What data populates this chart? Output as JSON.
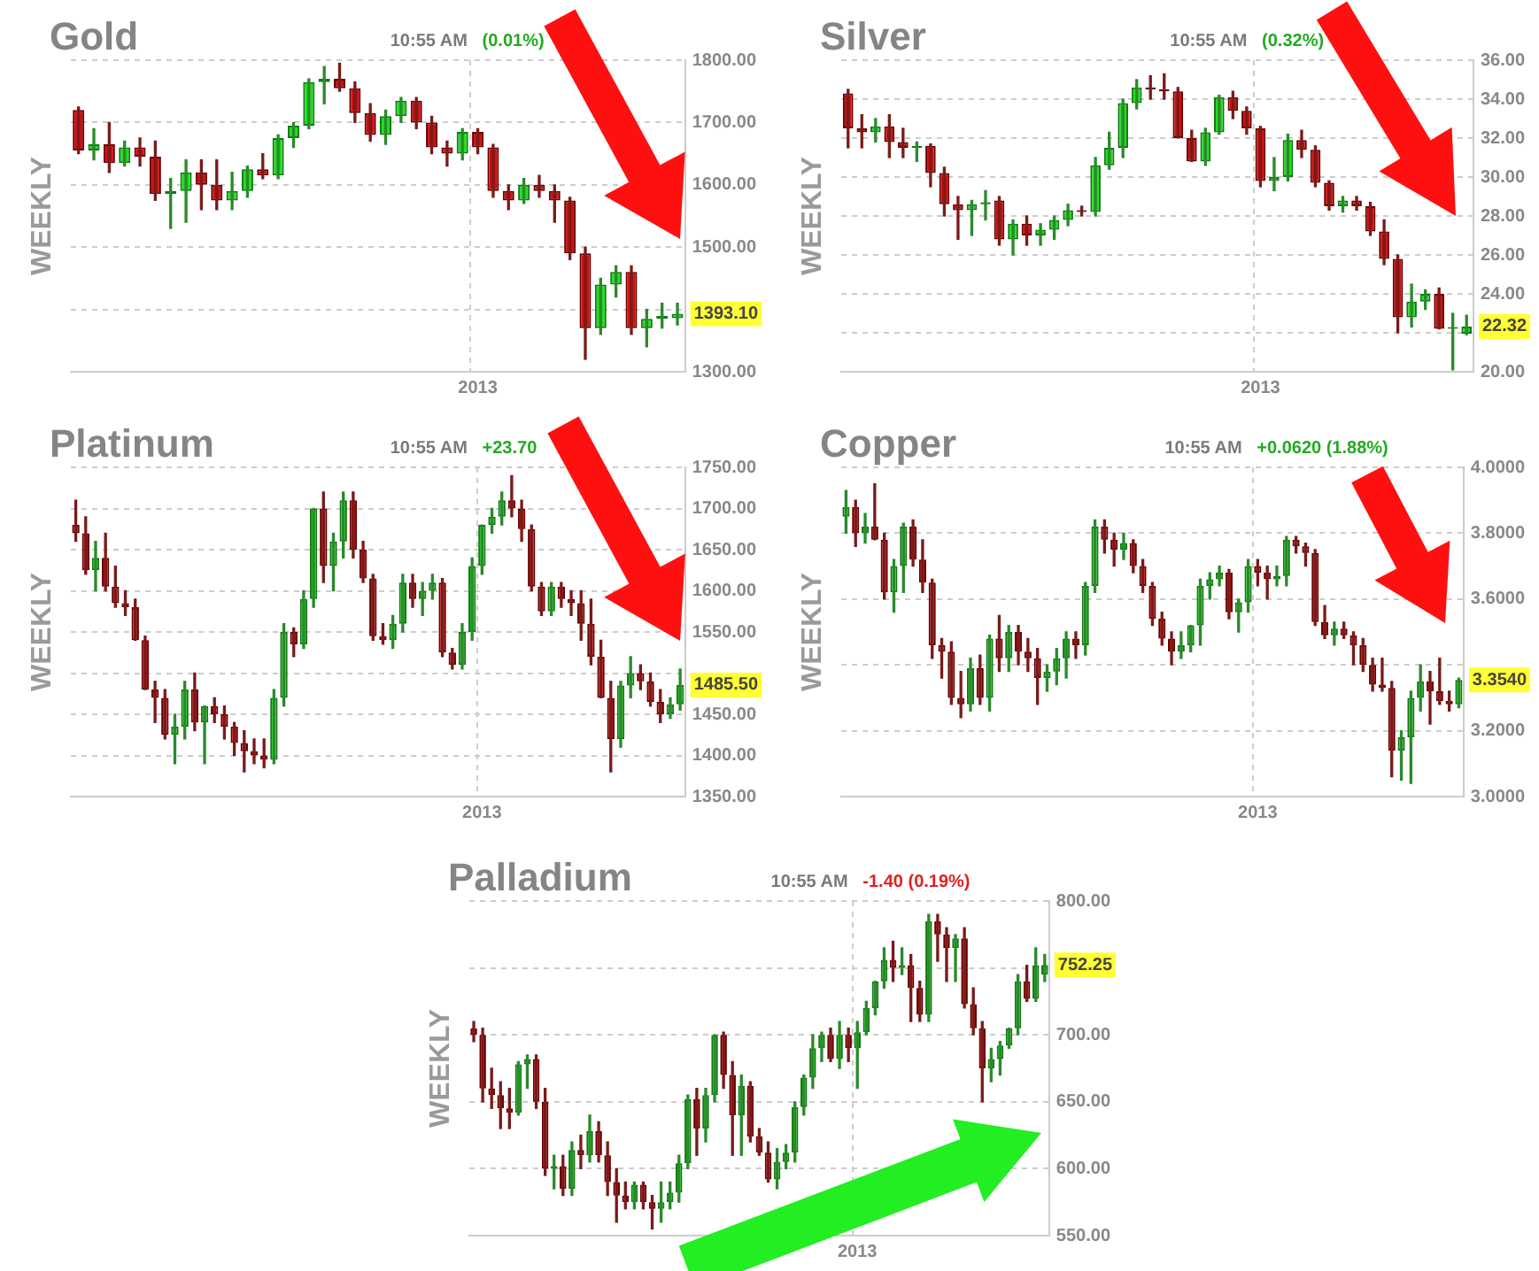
{
  "chart_data": [
    {
      "type": "candlestick",
      "title": "Gold",
      "ylabel": "WEEKLY",
      "grid": true,
      "categories": [
        null,
        null,
        null,
        null,
        null,
        null,
        null,
        null,
        null,
        null,
        null,
        null,
        null,
        null,
        null,
        null,
        null,
        null,
        null,
        null,
        null,
        null,
        null,
        null,
        null,
        null,
        "2013",
        null,
        null,
        null,
        null,
        null,
        null,
        null,
        null,
        null,
        null,
        null,
        null,
        null
      ],
      "ohlc": [
        [
          1720,
          1725,
          1650,
          1655
        ],
        [
          1655,
          1690,
          1640,
          1665
        ],
        [
          1665,
          1700,
          1620,
          1635
        ],
        [
          1635,
          1670,
          1630,
          1660
        ],
        [
          1660,
          1675,
          1630,
          1645
        ],
        [
          1645,
          1670,
          1575,
          1585
        ],
        [
          1585,
          1610,
          1530,
          1590
        ],
        [
          1590,
          1640,
          1540,
          1620
        ],
        [
          1620,
          1640,
          1560,
          1600
        ],
        [
          1600,
          1640,
          1560,
          1575
        ],
        [
          1575,
          1620,
          1560,
          1590
        ],
        [
          1590,
          1630,
          1580,
          1625
        ],
        [
          1625,
          1650,
          1610,
          1615
        ],
        [
          1615,
          1680,
          1610,
          1675
        ],
        [
          1675,
          1700,
          1660,
          1695
        ],
        [
          1695,
          1770,
          1690,
          1765
        ],
        [
          1765,
          1790,
          1730,
          1770
        ],
        [
          1770,
          1795,
          1750,
          1755
        ],
        [
          1755,
          1765,
          1700,
          1715
        ],
        [
          1715,
          1730,
          1670,
          1680
        ],
        [
          1680,
          1720,
          1665,
          1710
        ],
        [
          1710,
          1740,
          1700,
          1735
        ],
        [
          1735,
          1740,
          1690,
          1700
        ],
        [
          1700,
          1710,
          1650,
          1660
        ],
        [
          1660,
          1670,
          1630,
          1650
        ],
        [
          1650,
          1690,
          1640,
          1685
        ],
        [
          1685,
          1690,
          1650,
          1660
        ],
        [
          1660,
          1665,
          1580,
          1590
        ],
        [
          1590,
          1600,
          1560,
          1575
        ],
        [
          1575,
          1610,
          1570,
          1600
        ],
        [
          1600,
          1615,
          1580,
          1590
        ],
        [
          1590,
          1600,
          1540,
          1575
        ],
        [
          1575,
          1580,
          1480,
          1490
        ],
        [
          1490,
          1500,
          1320,
          1370
        ],
        [
          1370,
          1450,
          1360,
          1440
        ],
        [
          1440,
          1470,
          1420,
          1460
        ],
        [
          1460,
          1470,
          1360,
          1370
        ],
        [
          1370,
          1400,
          1340,
          1385
        ],
        [
          1385,
          1410,
          1370,
          1390
        ],
        [
          1386,
          1410,
          1375,
          1393.1
        ]
      ],
      "ylim": [
        1300,
        1800
      ],
      "yticks": [
        {
          "value": 1300,
          "label": "1300.00"
        },
        {
          "value": 1400,
          "label": null
        },
        {
          "value": 1500,
          "label": "1500.00"
        },
        {
          "value": 1600,
          "label": "1600.00"
        },
        {
          "value": 1700,
          "label": "1700.00"
        },
        {
          "value": 1800,
          "label": "1800.00"
        }
      ],
      "annotations": [
        "10:55 AM",
        "(0.01%)",
        "1393.10"
      ]
    },
    {
      "type": "candlestick",
      "title": "Silver",
      "ylabel": "WEEKLY",
      "grid": true,
      "categories": [
        null,
        null,
        null,
        null,
        null,
        null,
        null,
        null,
        null,
        null,
        null,
        null,
        null,
        null,
        null,
        null,
        null,
        null,
        null,
        null,
        null,
        null,
        null,
        null,
        null,
        null,
        null,
        null,
        null,
        null,
        "2013",
        null,
        null,
        null,
        null,
        null,
        null,
        null,
        null,
        null,
        null,
        null,
        null,
        null,
        null,
        null
      ],
      "ohlc": [
        [
          34.3,
          34.5,
          31.5,
          32.5
        ],
        [
          32.5,
          33.2,
          31.5,
          32.3
        ],
        [
          32.3,
          33.0,
          31.8,
          32.6
        ],
        [
          32.6,
          33.2,
          31.0,
          31.8
        ],
        [
          31.8,
          32.5,
          31.0,
          31.5
        ],
        [
          31.5,
          31.8,
          30.8,
          31.6
        ],
        [
          31.6,
          31.7,
          29.5,
          30.2
        ],
        [
          30.2,
          30.5,
          28.0,
          28.6
        ],
        [
          28.6,
          29.0,
          26.8,
          28.3
        ],
        [
          28.3,
          28.8,
          27.0,
          28.6
        ],
        [
          28.6,
          29.3,
          27.8,
          28.7
        ],
        [
          28.8,
          29.0,
          26.5,
          26.8
        ],
        [
          26.8,
          27.8,
          26.0,
          27.6
        ],
        [
          27.6,
          28.0,
          26.5,
          27.0
        ],
        [
          27.0,
          27.6,
          26.5,
          27.3
        ],
        [
          27.3,
          28.0,
          26.8,
          27.8
        ],
        [
          27.8,
          28.6,
          27.5,
          28.3
        ],
        [
          28.3,
          28.5,
          28.0,
          28.2
        ],
        [
          28.2,
          31.0,
          28.0,
          30.6
        ],
        [
          30.6,
          32.3,
          30.4,
          31.5
        ],
        [
          31.5,
          34.0,
          31.0,
          33.8
        ],
        [
          33.8,
          35.0,
          33.5,
          34.6
        ],
        [
          34.6,
          35.2,
          34.0,
          34.5
        ],
        [
          34.5,
          35.3,
          34.0,
          34.4
        ],
        [
          34.4,
          34.6,
          32.0,
          32.0
        ],
        [
          32.0,
          32.4,
          30.8,
          30.8
        ],
        [
          30.8,
          32.5,
          30.6,
          32.3
        ],
        [
          32.3,
          34.2,
          32.2,
          34.1
        ],
        [
          34.1,
          34.4,
          33.0,
          33.4
        ],
        [
          33.4,
          33.6,
          32.2,
          32.5
        ],
        [
          32.5,
          32.6,
          29.5,
          29.8
        ],
        [
          29.8,
          31.0,
          29.3,
          30.0
        ],
        [
          30.0,
          32.2,
          29.8,
          31.9
        ],
        [
          31.9,
          32.4,
          31.0,
          31.4
        ],
        [
          31.4,
          31.6,
          29.5,
          29.7
        ],
        [
          29.7,
          29.8,
          28.3,
          28.5
        ],
        [
          28.5,
          29.0,
          28.2,
          28.8
        ],
        [
          28.8,
          29.0,
          28.3,
          28.5
        ],
        [
          28.5,
          28.7,
          27.0,
          27.2
        ],
        [
          27.2,
          27.8,
          25.5,
          25.8
        ],
        [
          25.8,
          26.0,
          22.0,
          22.8
        ],
        [
          22.8,
          24.5,
          22.3,
          23.6
        ],
        [
          23.6,
          24.2,
          23.2,
          24.0
        ],
        [
          24.0,
          24.3,
          22.2,
          22.2
        ],
        [
          22.2,
          23.0,
          20.1,
          22.3
        ],
        [
          21.95,
          22.9,
          21.9,
          22.32
        ]
      ],
      "ylim": [
        20,
        36
      ],
      "yticks": [
        {
          "value": 20,
          "label": "20.00"
        },
        {
          "value": 22,
          "label": null
        },
        {
          "value": 24,
          "label": "24.00"
        },
        {
          "value": 26,
          "label": "26.00"
        },
        {
          "value": 28,
          "label": "28.00"
        },
        {
          "value": 30,
          "label": "30.00"
        },
        {
          "value": 32,
          "label": "32.00"
        },
        {
          "value": 34,
          "label": "34.00"
        },
        {
          "value": 36,
          "label": "36.00"
        }
      ],
      "annotations": [
        "10:55 AM",
        "(0.32%)",
        "22.32"
      ]
    },
    {
      "type": "candlestick",
      "title": "Platinum",
      "ylabel": "WEEKLY",
      "grid": true,
      "categories": [
        null,
        null,
        null,
        null,
        null,
        null,
        null,
        null,
        null,
        null,
        null,
        null,
        null,
        null,
        null,
        null,
        null,
        null,
        null,
        null,
        null,
        null,
        null,
        null,
        null,
        null,
        null,
        null,
        null,
        null,
        null,
        null,
        null,
        null,
        null,
        null,
        null,
        null,
        null,
        null,
        null,
        "2013",
        null,
        null,
        null,
        null,
        null,
        null,
        null,
        null,
        null,
        null,
        null,
        null,
        null,
        null,
        null,
        null,
        null,
        null,
        null,
        null
      ],
      "ohlc": [
        [
          1680,
          1710,
          1660,
          1670
        ],
        [
          1670,
          1690,
          1620,
          1625
        ],
        [
          1625,
          1660,
          1600,
          1640
        ],
        [
          1640,
          1670,
          1600,
          1605
        ],
        [
          1605,
          1630,
          1580,
          1585
        ],
        [
          1585,
          1600,
          1570,
          1580
        ],
        [
          1580,
          1590,
          1540,
          1540
        ],
        [
          1540,
          1545,
          1480,
          1480
        ],
        [
          1480,
          1490,
          1440,
          1470
        ],
        [
          1470,
          1480,
          1420,
          1425
        ],
        [
          1425,
          1450,
          1390,
          1435
        ],
        [
          1435,
          1490,
          1420,
          1480
        ],
        [
          1480,
          1500,
          1430,
          1440
        ],
        [
          1440,
          1460,
          1390,
          1460
        ],
        [
          1460,
          1470,
          1440,
          1450
        ],
        [
          1450,
          1460,
          1420,
          1435
        ],
        [
          1435,
          1440,
          1400,
          1415
        ],
        [
          1415,
          1430,
          1380,
          1405
        ],
        [
          1405,
          1420,
          1390,
          1400
        ],
        [
          1400,
          1420,
          1385,
          1395
        ],
        [
          1395,
          1480,
          1390,
          1470
        ],
        [
          1470,
          1560,
          1460,
          1550
        ],
        [
          1550,
          1555,
          1520,
          1535
        ],
        [
          1535,
          1600,
          1530,
          1590
        ],
        [
          1590,
          1700,
          1580,
          1700
        ],
        [
          1700,
          1720,
          1610,
          1630
        ],
        [
          1630,
          1670,
          1600,
          1660
        ],
        [
          1660,
          1720,
          1640,
          1710
        ],
        [
          1710,
          1720,
          1640,
          1650
        ],
        [
          1650,
          1660,
          1610,
          1615
        ],
        [
          1615,
          1620,
          1540,
          1545
        ],
        [
          1545,
          1560,
          1535,
          1540
        ],
        [
          1540,
          1570,
          1530,
          1560
        ],
        [
          1560,
          1620,
          1550,
          1610
        ],
        [
          1610,
          1620,
          1580,
          1590
        ],
        [
          1590,
          1610,
          1570,
          1600
        ],
        [
          1600,
          1620,
          1590,
          1610
        ],
        [
          1610,
          1615,
          1520,
          1525
        ],
        [
          1525,
          1530,
          1505,
          1510
        ],
        [
          1510,
          1560,
          1505,
          1550
        ],
        [
          1550,
          1640,
          1540,
          1630
        ],
        [
          1630,
          1680,
          1620,
          1680
        ],
        [
          1680,
          1700,
          1670,
          1690
        ],
        [
          1690,
          1720,
          1680,
          1710
        ],
        [
          1710,
          1740,
          1690,
          1700
        ],
        [
          1700,
          1710,
          1660,
          1675
        ],
        [
          1675,
          1680,
          1600,
          1605
        ],
        [
          1605,
          1610,
          1570,
          1575
        ],
        [
          1575,
          1610,
          1570,
          1605
        ],
        [
          1605,
          1610,
          1580,
          1590
        ],
        [
          1590,
          1600,
          1570,
          1585
        ],
        [
          1585,
          1600,
          1540,
          1560
        ],
        [
          1560,
          1590,
          1510,
          1520
        ],
        [
          1520,
          1540,
          1470,
          1470
        ],
        [
          1470,
          1490,
          1380,
          1420
        ],
        [
          1420,
          1490,
          1410,
          1485
        ],
        [
          1485,
          1520,
          1470,
          1500
        ],
        [
          1500,
          1510,
          1480,
          1490
        ],
        [
          1490,
          1500,
          1460,
          1465
        ],
        [
          1465,
          1480,
          1440,
          1450
        ],
        [
          1450,
          1470,
          1445,
          1462
        ],
        [
          1462,
          1505,
          1455,
          1485.5
        ]
      ],
      "ylim": [
        1350,
        1750
      ],
      "yticks": [
        {
          "value": 1350,
          "label": "1350.00"
        },
        {
          "value": 1400,
          "label": "1400.00"
        },
        {
          "value": 1450,
          "label": "1450.00"
        },
        {
          "value": 1500,
          "label": null
        },
        {
          "value": 1550,
          "label": "1550.00"
        },
        {
          "value": 1600,
          "label": "1600.00"
        },
        {
          "value": 1650,
          "label": "1650.00"
        },
        {
          "value": 1700,
          "label": "1700.00"
        },
        {
          "value": 1750,
          "label": "1750.00"
        }
      ],
      "annotations": [
        "10:55 AM",
        "+23.70",
        "1485.50"
      ]
    },
    {
      "type": "candlestick",
      "title": "Copper",
      "ylabel": "WEEKLY",
      "grid": true,
      "categories": [
        null,
        null,
        null,
        null,
        null,
        null,
        null,
        null,
        null,
        null,
        null,
        null,
        null,
        null,
        null,
        null,
        null,
        null,
        null,
        null,
        null,
        null,
        null,
        null,
        null,
        null,
        null,
        null,
        null,
        null,
        null,
        null,
        null,
        null,
        null,
        null,
        null,
        null,
        null,
        null,
        null,
        null,
        null,
        "2013",
        null,
        null,
        null,
        null,
        null,
        null,
        null,
        null,
        null,
        null,
        null,
        null,
        null,
        null,
        null,
        null,
        null,
        null,
        null,
        null,
        null
      ],
      "ohlc": [
        [
          3.85,
          3.93,
          3.8,
          3.88
        ],
        [
          3.88,
          3.9,
          3.76,
          3.8
        ],
        [
          3.8,
          3.86,
          3.77,
          3.82
        ],
        [
          3.82,
          3.95,
          3.78,
          3.78
        ],
        [
          3.78,
          3.8,
          3.6,
          3.62
        ],
        [
          3.62,
          3.72,
          3.56,
          3.7
        ],
        [
          3.7,
          3.83,
          3.62,
          3.82
        ],
        [
          3.82,
          3.84,
          3.7,
          3.72
        ],
        [
          3.72,
          3.78,
          3.62,
          3.65
        ],
        [
          3.65,
          3.66,
          3.42,
          3.46
        ],
        [
          3.46,
          3.48,
          3.36,
          3.44
        ],
        [
          3.44,
          3.47,
          3.28,
          3.3
        ],
        [
          3.3,
          3.38,
          3.24,
          3.28
        ],
        [
          3.28,
          3.42,
          3.26,
          3.39
        ],
        [
          3.39,
          3.43,
          3.28,
          3.3
        ],
        [
          3.3,
          3.49,
          3.26,
          3.48
        ],
        [
          3.48,
          3.55,
          3.38,
          3.42
        ],
        [
          3.42,
          3.52,
          3.38,
          3.5
        ],
        [
          3.5,
          3.52,
          3.4,
          3.44
        ],
        [
          3.44,
          3.48,
          3.38,
          3.42
        ],
        [
          3.42,
          3.45,
          3.28,
          3.36
        ],
        [
          3.36,
          3.4,
          3.32,
          3.38
        ],
        [
          3.38,
          3.45,
          3.34,
          3.42
        ],
        [
          3.42,
          3.5,
          3.36,
          3.48
        ],
        [
          3.48,
          3.5,
          3.42,
          3.46
        ],
        [
          3.46,
          3.65,
          3.43,
          3.64
        ],
        [
          3.64,
          3.84,
          3.62,
          3.82
        ],
        [
          3.82,
          3.84,
          3.74,
          3.78
        ],
        [
          3.78,
          3.8,
          3.7,
          3.75
        ],
        [
          3.75,
          3.8,
          3.72,
          3.77
        ],
        [
          3.77,
          3.78,
          3.68,
          3.7
        ],
        [
          3.7,
          3.72,
          3.62,
          3.64
        ],
        [
          3.64,
          3.65,
          3.52,
          3.54
        ],
        [
          3.54,
          3.56,
          3.46,
          3.48
        ],
        [
          3.48,
          3.5,
          3.4,
          3.44
        ],
        [
          3.44,
          3.5,
          3.42,
          3.46
        ],
        [
          3.46,
          3.52,
          3.44,
          3.52
        ],
        [
          3.52,
          3.66,
          3.46,
          3.64
        ],
        [
          3.64,
          3.68,
          3.6,
          3.66
        ],
        [
          3.66,
          3.7,
          3.64,
          3.68
        ],
        [
          3.68,
          3.69,
          3.54,
          3.56
        ],
        [
          3.56,
          3.6,
          3.5,
          3.59
        ],
        [
          3.59,
          3.72,
          3.56,
          3.7
        ],
        [
          3.7,
          3.72,
          3.64,
          3.68
        ],
        [
          3.68,
          3.7,
          3.6,
          3.66
        ],
        [
          3.66,
          3.7,
          3.64,
          3.67
        ],
        [
          3.67,
          3.79,
          3.64,
          3.78
        ],
        [
          3.78,
          3.79,
          3.74,
          3.76
        ],
        [
          3.76,
          3.77,
          3.7,
          3.74
        ],
        [
          3.74,
          3.75,
          3.52,
          3.53
        ],
        [
          3.53,
          3.58,
          3.48,
          3.49
        ],
        [
          3.49,
          3.53,
          3.46,
          3.51
        ],
        [
          3.51,
          3.53,
          3.48,
          3.49
        ],
        [
          3.49,
          3.5,
          3.4,
          3.46
        ],
        [
          3.46,
          3.48,
          3.38,
          3.4
        ],
        [
          3.4,
          3.42,
          3.32,
          3.34
        ],
        [
          3.34,
          3.42,
          3.32,
          3.33
        ],
        [
          3.33,
          3.35,
          3.06,
          3.14
        ],
        [
          3.14,
          3.2,
          3.05,
          3.18
        ],
        [
          3.18,
          3.32,
          3.04,
          3.3
        ],
        [
          3.3,
          3.4,
          3.26,
          3.35
        ],
        [
          3.35,
          3.38,
          3.22,
          3.32
        ],
        [
          3.32,
          3.42,
          3.28,
          3.29
        ],
        [
          3.29,
          3.32,
          3.26,
          3.28
        ],
        [
          3.28,
          3.36,
          3.27,
          3.354
        ]
      ],
      "ylim": [
        3.0,
        4.0
      ],
      "yticks": [
        {
          "value": 3.0,
          "label": "3.0000"
        },
        {
          "value": 3.2,
          "label": "3.2000"
        },
        {
          "value": 3.4,
          "label": null
        },
        {
          "value": 3.6,
          "label": "3.6000"
        },
        {
          "value": 3.8,
          "label": "3.8000"
        },
        {
          "value": 4.0,
          "label": "4.0000"
        }
      ],
      "annotations": [
        "10:55 AM",
        "+0.0620 (1.88%)",
        "3.3540"
      ]
    },
    {
      "type": "candlestick",
      "title": "Palladium",
      "ylabel": "WEEKLY",
      "grid": true,
      "categories": [
        null,
        null,
        null,
        null,
        null,
        null,
        null,
        null,
        null,
        null,
        null,
        null,
        null,
        null,
        null,
        null,
        null,
        null,
        null,
        null,
        null,
        null,
        null,
        null,
        null,
        null,
        null,
        null,
        null,
        null,
        null,
        null,
        null,
        null,
        null,
        null,
        null,
        null,
        null,
        null,
        null,
        null,
        null,
        "2013",
        null,
        null,
        null,
        null,
        null,
        null,
        null,
        null,
        null,
        null,
        null,
        null,
        null,
        null,
        null,
        null,
        null,
        null,
        null,
        null,
        null
      ],
      "ohlc": [
        [
          705,
          710,
          695,
          700
        ],
        [
          700,
          705,
          650,
          660
        ],
        [
          660,
          675,
          645,
          655
        ],
        [
          655,
          665,
          630,
          645
        ],
        [
          645,
          660,
          630,
          642
        ],
        [
          642,
          680,
          640,
          678
        ],
        [
          678,
          685,
          660,
          682
        ],
        [
          682,
          685,
          645,
          650
        ],
        [
          650,
          660,
          595,
          600
        ],
        [
          600,
          610,
          585,
          602
        ],
        [
          602,
          610,
          580,
          585
        ],
        [
          585,
          620,
          580,
          614
        ],
        [
          614,
          625,
          600,
          610
        ],
        [
          610,
          640,
          605,
          628
        ],
        [
          628,
          635,
          605,
          610
        ],
        [
          610,
          620,
          580,
          590
        ],
        [
          590,
          600,
          560,
          580
        ],
        [
          580,
          590,
          570,
          575
        ],
        [
          575,
          590,
          570,
          588
        ],
        [
          588,
          590,
          570,
          575
        ],
        [
          575,
          580,
          555,
          570
        ],
        [
          570,
          590,
          560,
          575
        ],
        [
          575,
          590,
          570,
          582
        ],
        [
          582,
          610,
          575,
          604
        ],
        [
          604,
          655,
          600,
          652
        ],
        [
          652,
          660,
          610,
          630
        ],
        [
          630,
          660,
          620,
          655
        ],
        [
          655,
          700,
          650,
          700
        ],
        [
          700,
          702,
          660,
          670
        ],
        [
          670,
          680,
          610,
          640
        ],
        [
          640,
          670,
          610,
          662
        ],
        [
          662,
          665,
          620,
          624
        ],
        [
          624,
          630,
          610,
          612
        ],
        [
          612,
          620,
          590,
          592
        ],
        [
          592,
          615,
          585,
          605
        ],
        [
          605,
          618,
          600,
          612
        ],
        [
          612,
          650,
          605,
          646
        ],
        [
          646,
          670,
          640,
          668
        ],
        [
          668,
          700,
          660,
          690
        ],
        [
          690,
          702,
          680,
          700
        ],
        [
          700,
          705,
          680,
          682
        ],
        [
          682,
          710,
          675,
          700
        ],
        [
          700,
          705,
          680,
          690
        ],
        [
          690,
          710,
          660,
          702
        ],
        [
          702,
          725,
          700,
          720
        ],
        [
          720,
          740,
          715,
          740
        ],
        [
          740,
          765,
          735,
          756
        ],
        [
          756,
          770,
          740,
          750
        ],
        [
          750,
          765,
          745,
          752
        ],
        [
          752,
          760,
          710,
          735
        ],
        [
          735,
          740,
          710,
          715
        ],
        [
          715,
          790,
          710,
          785
        ],
        [
          785,
          790,
          755,
          775
        ],
        [
          775,
          780,
          740,
          765
        ],
        [
          765,
          775,
          740,
          772
        ],
        [
          772,
          780,
          720,
          723
        ],
        [
          723,
          735,
          700,
          705
        ],
        [
          705,
          710,
          650,
          675
        ],
        [
          675,
          690,
          665,
          682
        ],
        [
          682,
          695,
          670,
          692
        ],
        [
          692,
          705,
          690,
          705
        ],
        [
          705,
          745,
          700,
          740
        ],
        [
          740,
          752,
          725,
          727
        ],
        [
          727,
          765,
          725,
          752
        ],
        [
          745,
          760,
          740,
          752.25
        ]
      ],
      "ylim": [
        550,
        800
      ],
      "yticks": [
        {
          "value": 550,
          "label": "550.00"
        },
        {
          "value": 600,
          "label": "600.00"
        },
        {
          "value": 650,
          "label": "650.00"
        },
        {
          "value": 700,
          "label": "700.00"
        },
        {
          "value": 750,
          "label": null
        },
        {
          "value": 800,
          "label": "800.00"
        }
      ],
      "annotations": [
        "10:55 AM",
        "-1.40 (0.19%)",
        "752.25"
      ]
    }
  ]
}
